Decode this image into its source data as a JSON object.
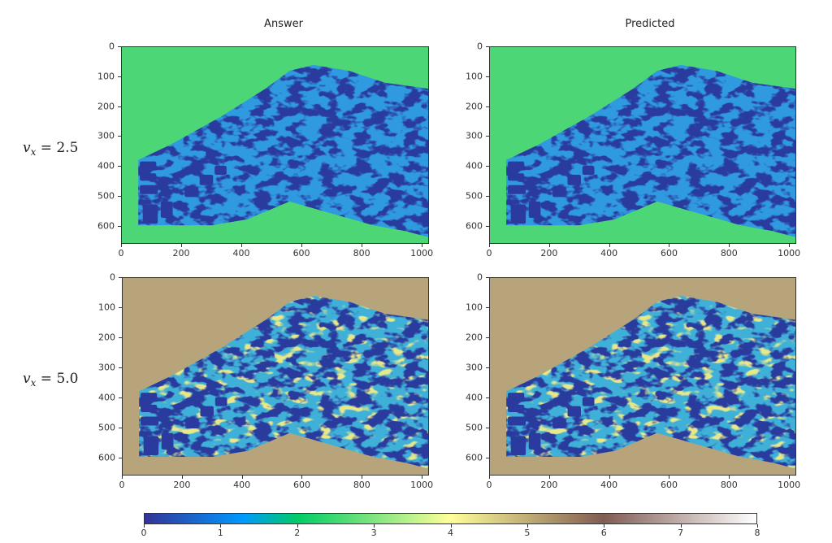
{
  "column_titles": [
    "Answer",
    "Predicted"
  ],
  "row_labels": [
    {
      "var": "v",
      "sub": "x",
      "value": "= 2.5"
    },
    {
      "var": "v",
      "sub": "x",
      "value": "= 5.0"
    }
  ],
  "chart_data": {
    "type": "heatmap",
    "colormap": "terrain",
    "panels": [
      {
        "row": "v_x = 2.5",
        "column": "Answer"
      },
      {
        "row": "v_x = 2.5",
        "column": "Predicted"
      },
      {
        "row": "v_x = 5.0",
        "column": "Answer"
      },
      {
        "row": "v_x = 5.0",
        "column": "Predicted"
      }
    ],
    "xlim": [
      0,
      1024
    ],
    "ylim": [
      660,
      0
    ],
    "x_ticks": [
      "0",
      "200",
      "400",
      "600",
      "800",
      "1000"
    ],
    "y_ticks": [
      "0",
      "100",
      "200",
      "300",
      "400",
      "500",
      "600"
    ],
    "colorbar": {
      "range": [
        0,
        8
      ],
      "ticks": [
        "0",
        "1",
        "2",
        "3",
        "4",
        "5",
        "6",
        "7",
        "8"
      ],
      "orientation": "horizontal"
    },
    "background_colors": {
      "v_x = 2.5": "#4dd676",
      "v_x = 5.0": "#b8a47a"
    },
    "plume_colors": {
      "low": "#2b3a9e",
      "mid": "#1f8fe8"
    }
  }
}
